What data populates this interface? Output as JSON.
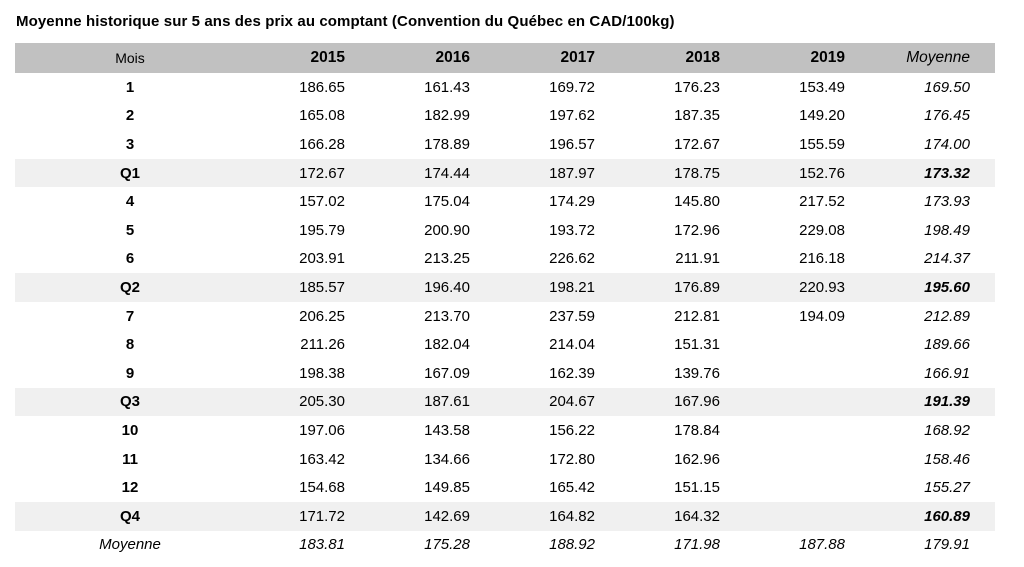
{
  "chart_data": {
    "type": "table",
    "title": "Moyenne historique sur 5 ans des prix au comptant (Convention du Québec en CAD/100kg)",
    "columns": [
      "Mois",
      "2015",
      "2016",
      "2017",
      "2018",
      "2019",
      "Moyenne"
    ],
    "rows": [
      {
        "label": "1",
        "type": "month",
        "values": [
          "186.65",
          "161.43",
          "169.72",
          "176.23",
          "153.49",
          "169.50"
        ]
      },
      {
        "label": "2",
        "type": "month",
        "values": [
          "165.08",
          "182.99",
          "197.62",
          "187.35",
          "149.20",
          "176.45"
        ]
      },
      {
        "label": "3",
        "type": "month",
        "values": [
          "166.28",
          "178.89",
          "196.57",
          "172.67",
          "155.59",
          "174.00"
        ]
      },
      {
        "label": "Q1",
        "type": "quarter",
        "values": [
          "172.67",
          "174.44",
          "187.97",
          "178.75",
          "152.76",
          "173.32"
        ]
      },
      {
        "label": "4",
        "type": "month",
        "values": [
          "157.02",
          "175.04",
          "174.29",
          "145.80",
          "217.52",
          "173.93"
        ]
      },
      {
        "label": "5",
        "type": "month",
        "values": [
          "195.79",
          "200.90",
          "193.72",
          "172.96",
          "229.08",
          "198.49"
        ]
      },
      {
        "label": "6",
        "type": "month",
        "values": [
          "203.91",
          "213.25",
          "226.62",
          "211.91",
          "216.18",
          "214.37"
        ]
      },
      {
        "label": "Q2",
        "type": "quarter",
        "values": [
          "185.57",
          "196.40",
          "198.21",
          "176.89",
          "220.93",
          "195.60"
        ]
      },
      {
        "label": "7",
        "type": "month",
        "values": [
          "206.25",
          "213.70",
          "237.59",
          "212.81",
          "194.09",
          "212.89"
        ]
      },
      {
        "label": "8",
        "type": "month",
        "values": [
          "211.26",
          "182.04",
          "214.04",
          "151.31",
          "",
          "189.66"
        ]
      },
      {
        "label": "9",
        "type": "month",
        "values": [
          "198.38",
          "167.09",
          "162.39",
          "139.76",
          "",
          "166.91"
        ]
      },
      {
        "label": "Q3",
        "type": "quarter",
        "values": [
          "205.30",
          "187.61",
          "204.67",
          "167.96",
          "",
          "191.39"
        ]
      },
      {
        "label": "10",
        "type": "month",
        "values": [
          "197.06",
          "143.58",
          "156.22",
          "178.84",
          "",
          "168.92"
        ]
      },
      {
        "label": "11",
        "type": "month",
        "values": [
          "163.42",
          "134.66",
          "172.80",
          "162.96",
          "",
          "158.46"
        ]
      },
      {
        "label": "12",
        "type": "month",
        "values": [
          "154.68",
          "149.85",
          "165.42",
          "151.15",
          "",
          "155.27"
        ]
      },
      {
        "label": "Q4",
        "type": "quarter",
        "values": [
          "171.72",
          "142.69",
          "164.82",
          "164.32",
          "",
          "160.89"
        ]
      },
      {
        "label": "Moyenne",
        "type": "average",
        "values": [
          "183.81",
          "175.28",
          "188.92",
          "171.98",
          "187.88",
          "179.91"
        ]
      }
    ],
    "colors": {
      "header_background": "#c1c1c1",
      "quarter_row_background": "#f0f0f0",
      "text": "#000000"
    },
    "layout_hints": {
      "label_column_alignment": "center",
      "value_alignment": "right",
      "grid": "off",
      "quarter_rows_shaded": true
    }
  }
}
